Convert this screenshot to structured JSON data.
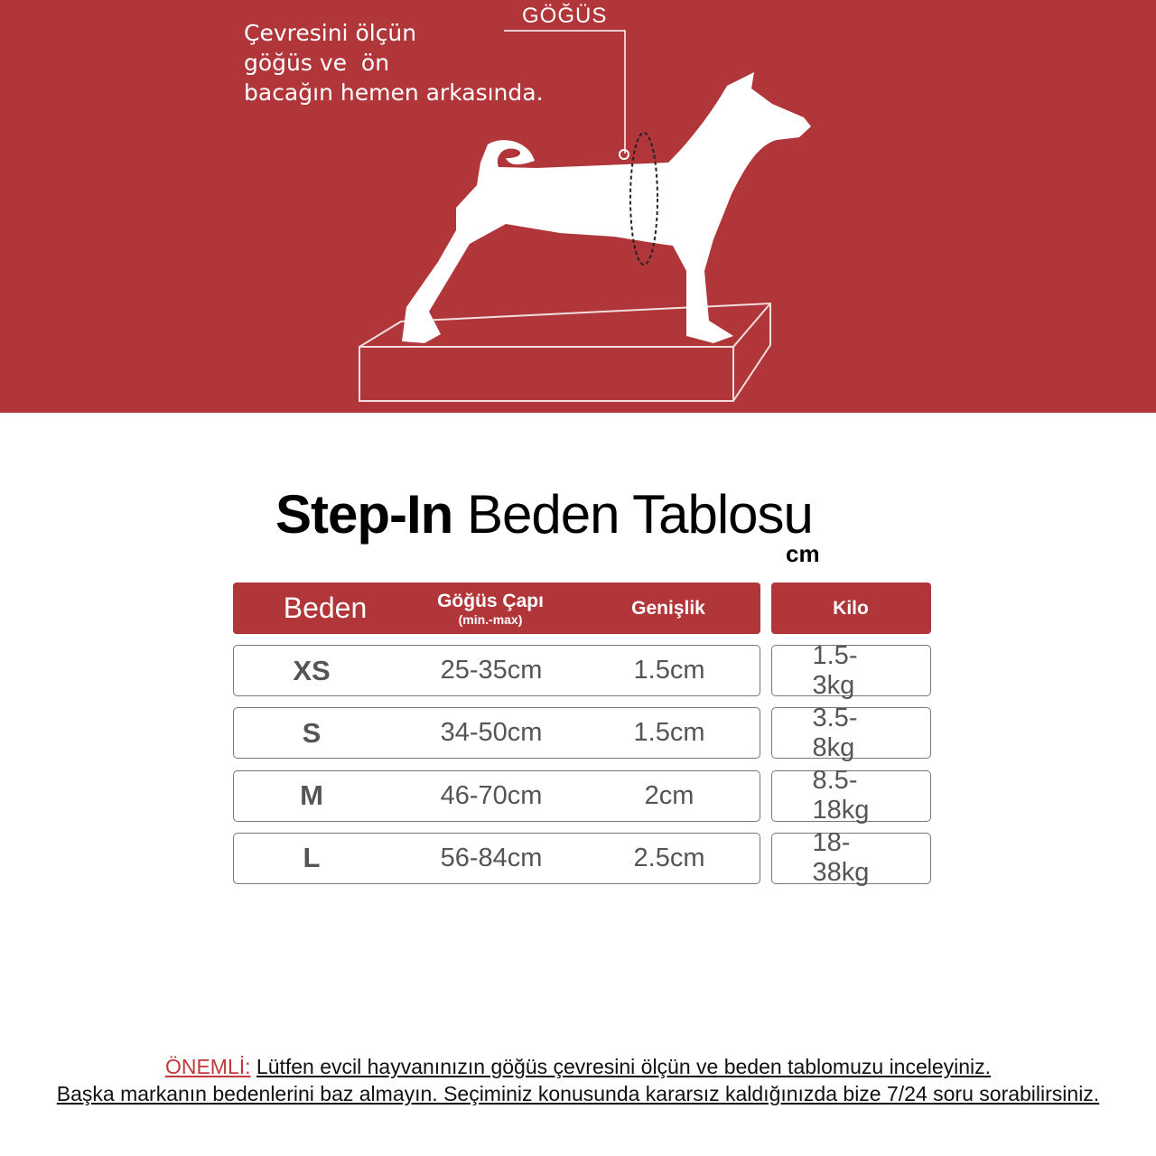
{
  "illustration": {
    "instruction": "Çevresini ölçün\ngöğüs ve  ön\nbacağın hemen arkasında.",
    "measure_label": "GÖĞÜS",
    "background_color": "#b13639"
  },
  "title": {
    "bold": "Step-In",
    "regular": "Beden Tablosu",
    "unit": "cm"
  },
  "table": {
    "headers": {
      "size": "Beden",
      "chest": "Göğüs Çapı",
      "chest_sub": "(min.-max)",
      "width": "Genişlik",
      "weight": "Kilo"
    },
    "rows": [
      {
        "size": "XS",
        "chest": "25-35cm",
        "width": "1.5cm",
        "weight": "1.5-3kg"
      },
      {
        "size": "S",
        "chest": "34-50cm",
        "width": "1.5cm",
        "weight": "3.5-8kg"
      },
      {
        "size": "M",
        "chest": "46-70cm",
        "width": "2cm",
        "weight": "8.5-18kg"
      },
      {
        "size": "L",
        "chest": "56-84cm",
        "width": "2.5cm",
        "weight": "18-38kg"
      }
    ]
  },
  "note": {
    "label": "ÖNEMLİ:",
    "line1": "Lütfen evcil hayvanınızın göğüs çevresini ölçün ve beden tablomuzu inceleyiniz.",
    "line2": "Başka markanın bedenlerini baz almayın. Seçiminiz konusunda kararsız kaldığınızda bize 7/24 soru sorabilirsiniz."
  }
}
